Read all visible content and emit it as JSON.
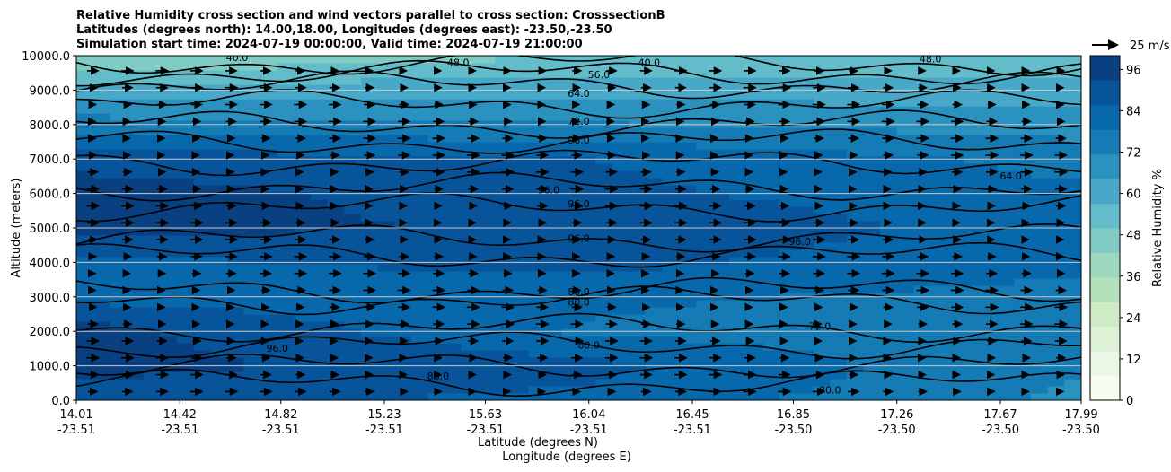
{
  "chart_data": {
    "type": "heatmap",
    "title_lines": [
      "Relative Humidity cross section and wind vectors parallel to cross section: CrosssectionB",
      "Latitudes (degrees north): 14.00,18.00, Longitudes (degrees east): -23.50,-23.50",
      "Simulation start time: 2024-07-19 00:00:00, Valid time: 2024-07-19 21:00:00"
    ],
    "ylabel": "Altitude (meters)",
    "xlabel_lines": [
      "Latitude (degrees N)",
      "Longitude (degrees E)"
    ],
    "x_ticks": [
      {
        "lat": "14.01",
        "lon": "-23.51"
      },
      {
        "lat": "14.42",
        "lon": "-23.51"
      },
      {
        "lat": "14.82",
        "lon": "-23.51"
      },
      {
        "lat": "15.23",
        "lon": "-23.51"
      },
      {
        "lat": "15.63",
        "lon": "-23.51"
      },
      {
        "lat": "16.04",
        "lon": "-23.51"
      },
      {
        "lat": "16.45",
        "lon": "-23.51"
      },
      {
        "lat": "16.85",
        "lon": "-23.50"
      },
      {
        "lat": "17.26",
        "lon": "-23.50"
      },
      {
        "lat": "17.67",
        "lon": "-23.50"
      },
      {
        "lat": "17.99",
        "lon": "-23.50"
      }
    ],
    "xlim": [
      14.01,
      17.99
    ],
    "ylim": [
      0,
      10000
    ],
    "y_ticks": [
      "0.0",
      "1000.0",
      "2000.0",
      "3000.0",
      "4000.0",
      "5000.0",
      "6000.0",
      "7000.0",
      "8000.0",
      "9000.0",
      "10000.0"
    ],
    "y_tick_values": [
      0,
      1000,
      2000,
      3000,
      4000,
      5000,
      6000,
      7000,
      8000,
      9000,
      10000
    ],
    "grid": "horizontal",
    "colorbar": {
      "label": "Relative Humidity %",
      "ticks": [
        "0",
        "12",
        "24",
        "36",
        "48",
        "60",
        "72",
        "84",
        "96"
      ],
      "tick_values": [
        0,
        12,
        24,
        36,
        48,
        60,
        72,
        84,
        96
      ],
      "range": [
        0,
        100
      ],
      "colors": [
        "#f7fcf0",
        "#eaf7e4",
        "#ddf1d6",
        "#cdebc5",
        "#b4e1ba",
        "#9dd7be",
        "#80cbc4",
        "#63bcc9",
        "#47a8c8",
        "#2b92c0",
        "#157bb5",
        "#0868ac",
        "#08549a",
        "#084081"
      ]
    },
    "quiver_key": {
      "label": "25 m/s",
      "value": 25
    },
    "contour_labels": [
      "40.0",
      "48.0",
      "56.0",
      "64.0",
      "72.0",
      "80.0",
      "88.0",
      "96.0"
    ],
    "humidity_profile": {
      "altitude": [
        0,
        1000,
        2000,
        3000,
        4000,
        5000,
        6000,
        7000,
        8000,
        9000,
        10000
      ],
      "rh_west": [
        88,
        96,
        96,
        84,
        84,
        95,
        97,
        90,
        75,
        60,
        42
      ],
      "rh_central": [
        84,
        88,
        78,
        80,
        88,
        92,
        88,
        86,
        72,
        62,
        50
      ],
      "rh_east": [
        70,
        72,
        72,
        76,
        80,
        82,
        80,
        76,
        68,
        60,
        52
      ]
    },
    "wind": {
      "direction": "parallel, pointing north",
      "speed_range_m_s": [
        5,
        12
      ]
    }
  }
}
